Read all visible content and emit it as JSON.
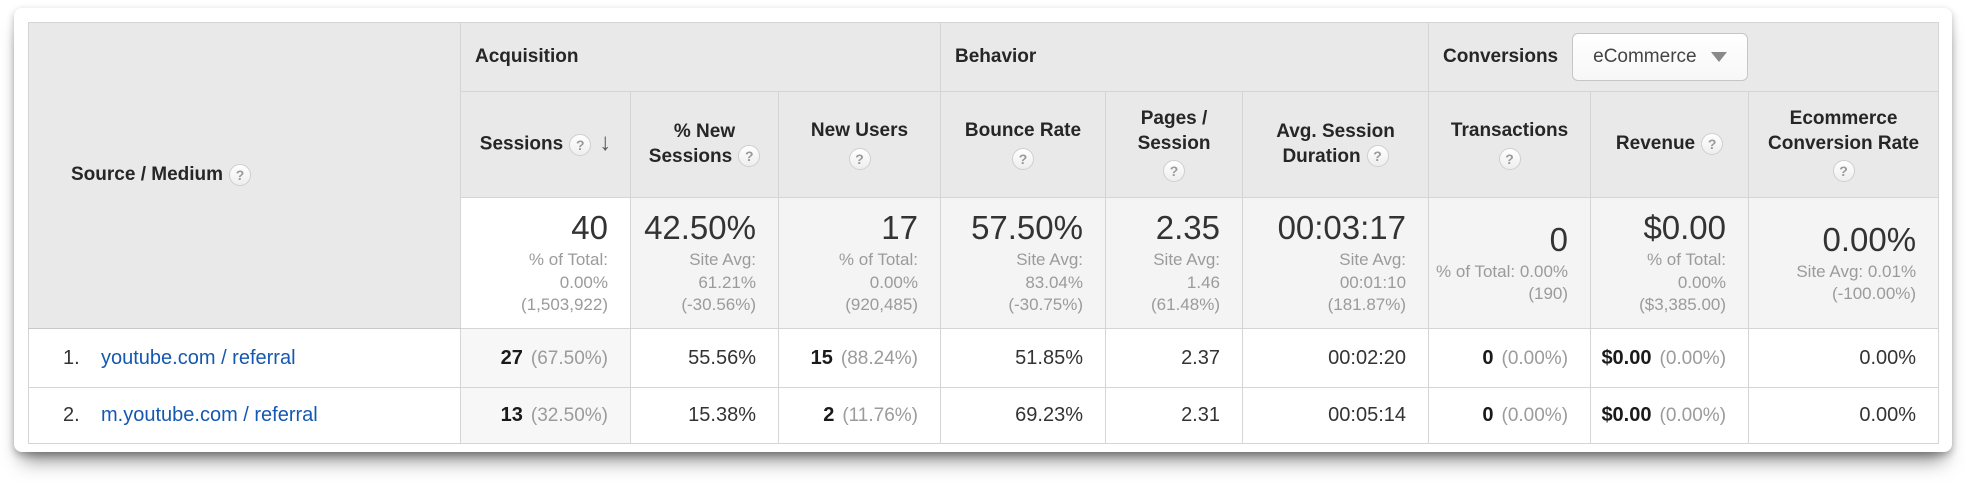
{
  "table": {
    "dimension_header": {
      "label": "Source / Medium"
    },
    "groups": {
      "acquisition": {
        "label": "Acquisition"
      },
      "behavior": {
        "label": "Behavior"
      },
      "conversions": {
        "label": "Conversions",
        "selector_value": "eCommerce"
      }
    },
    "columns": [
      {
        "label": "Sessions",
        "sorted": true
      },
      {
        "label": "% New\nSessions"
      },
      {
        "label": "New Users"
      },
      {
        "label": "Bounce Rate"
      },
      {
        "label": "Pages /\nSession"
      },
      {
        "label": "Avg. Session\nDuration"
      },
      {
        "label": "Transactions"
      },
      {
        "label": "Revenue"
      },
      {
        "label": "Ecommerce\nConversion Rate"
      }
    ],
    "summary": [
      {
        "value": "40",
        "detail": "% of Total:\n0.00%\n(1,503,922)"
      },
      {
        "value": "42.50%",
        "detail": "Site Avg:\n61.21%\n(-30.56%)"
      },
      {
        "value": "17",
        "detail": "% of Total:\n0.00%\n(920,485)"
      },
      {
        "value": "57.50%",
        "detail": "Site Avg:\n83.04%\n(-30.75%)"
      },
      {
        "value": "2.35",
        "detail": "Site Avg:\n1.46\n(61.48%)"
      },
      {
        "value": "00:03:17",
        "detail": "Site Avg:\n00:01:10\n(181.87%)"
      },
      {
        "value": "0",
        "detail": "% of Total: 0.00%\n(190)"
      },
      {
        "value": "$0.00",
        "detail": "% of Total:\n0.00%\n($3,385.00)"
      },
      {
        "value": "0.00%",
        "detail": "Site Avg: 0.01%\n(-100.00%)"
      }
    ],
    "rows": [
      {
        "index": "1.",
        "source": "youtube.com / referral",
        "sessions": "27",
        "sessions_pct": "(67.50%)",
        "new_sessions": "55.56%",
        "new_users": "15",
        "new_users_pct": "(88.24%)",
        "bounce_rate": "51.85%",
        "pages_session": "2.37",
        "avg_duration": "00:02:20",
        "transactions": "0",
        "transactions_pct": "(0.00%)",
        "revenue": "$0.00",
        "revenue_pct": "(0.00%)",
        "ecommerce_cr": "0.00%"
      },
      {
        "index": "2.",
        "source": "m.youtube.com / referral",
        "sessions": "13",
        "sessions_pct": "(32.50%)",
        "new_sessions": "15.38%",
        "new_users": "2",
        "new_users_pct": "(11.76%)",
        "bounce_rate": "69.23%",
        "pages_session": "2.31",
        "avg_duration": "00:05:14",
        "transactions": "0",
        "transactions_pct": "(0.00%)",
        "revenue": "$0.00",
        "revenue_pct": "(0.00%)",
        "ecommerce_cr": "0.00%"
      }
    ]
  }
}
